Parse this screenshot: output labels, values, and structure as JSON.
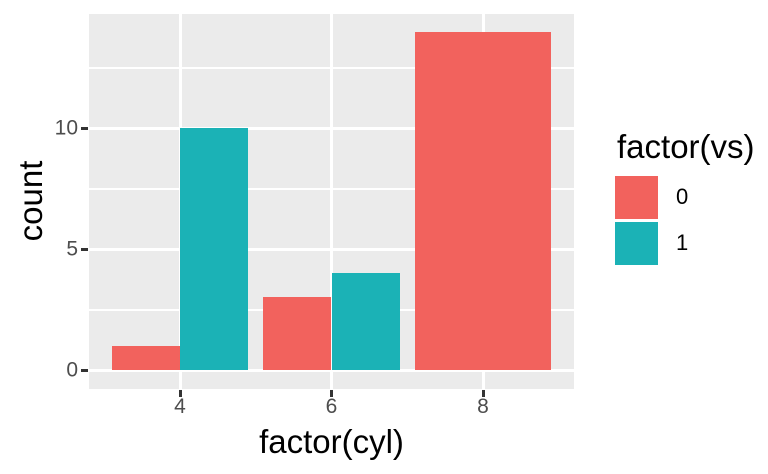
{
  "chart_data": {
    "type": "bar",
    "position": "dodge",
    "title": "",
    "xlabel": "factor(cyl)",
    "ylabel": "count",
    "categories": [
      "4",
      "6",
      "8"
    ],
    "series": [
      {
        "name": "0",
        "color": "#F2625D",
        "values": [
          1,
          3,
          14
        ]
      },
      {
        "name": "1",
        "color": "#1BB2B6",
        "values": [
          10,
          4,
          null
        ]
      }
    ],
    "y_ticks": [
      0,
      5,
      10
    ],
    "y_minor_ticks": [
      2.5,
      7.5,
      12.5
    ],
    "y_range": [
      -0.7,
      14.7
    ],
    "grid": true,
    "legend": {
      "title": "factor(vs)",
      "position": "right"
    },
    "theme": {
      "panel_bg": "#EBEBEB",
      "grid_color": "#FFFFFF",
      "tick_mark_color": "#333333",
      "tick_label_color": "#4D4D4D",
      "title_color": "#000000",
      "page_bg": "#FFFFFF"
    }
  }
}
